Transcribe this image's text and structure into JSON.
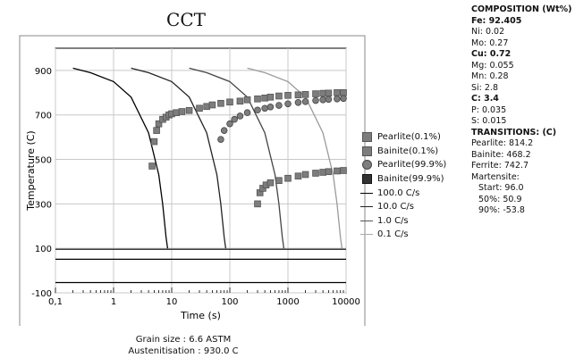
{
  "chart_data": {
    "type": "line",
    "title": "CCT",
    "xlabel": "Time (s)",
    "ylabel": "Temperature (C)",
    "x_scale": "log",
    "xlim": [
      0.1,
      10000
    ],
    "ylim": [
      -100,
      1000
    ],
    "x_ticks": [
      "0,1",
      "1",
      "10",
      "100",
      "1000",
      "10000"
    ],
    "y_ticks": [
      "900",
      "700",
      "500",
      "300",
      "100",
      "-100"
    ],
    "grid": true,
    "legend_position": "right",
    "cooling_curves": [
      {
        "name": "100.0 C/s",
        "points": [
          [
            0.2,
            910
          ],
          [
            0.4,
            890
          ],
          [
            1,
            850
          ],
          [
            2,
            780
          ],
          [
            4,
            620
          ],
          [
            6,
            430
          ],
          [
            7,
            300
          ],
          [
            8,
            150
          ],
          [
            8.5,
            100
          ]
        ]
      },
      {
        "name": "10.0 C/s",
        "points": [
          [
            2,
            910
          ],
          [
            4,
            890
          ],
          [
            10,
            850
          ],
          [
            20,
            780
          ],
          [
            40,
            620
          ],
          [
            60,
            430
          ],
          [
            70,
            300
          ],
          [
            80,
            150
          ],
          [
            85,
            100
          ]
        ]
      },
      {
        "name": "1.0 C/s",
        "points": [
          [
            20,
            910
          ],
          [
            40,
            890
          ],
          [
            100,
            850
          ],
          [
            200,
            780
          ],
          [
            400,
            620
          ],
          [
            600,
            430
          ],
          [
            700,
            300
          ],
          [
            800,
            150
          ],
          [
            850,
            100
          ]
        ]
      },
      {
        "name": "0.1 C/s",
        "points": [
          [
            200,
            910
          ],
          [
            400,
            890
          ],
          [
            1000,
            850
          ],
          [
            2000,
            780
          ],
          [
            4000,
            620
          ],
          [
            6000,
            430
          ],
          [
            7000,
            300
          ],
          [
            8000,
            150
          ],
          [
            8500,
            100
          ]
        ]
      }
    ],
    "horizontal_lines": [
      {
        "label": "Martensite start",
        "y": 96
      },
      {
        "label": "Martensite 50%",
        "y": 50.9
      },
      {
        "label": "Martensite 90%",
        "y": -53.8
      }
    ],
    "series": [
      {
        "name": "Pearlite(0.1%)",
        "marker": "square",
        "points": [
          [
            4.6,
            470
          ],
          [
            5,
            580
          ],
          [
            5.5,
            630
          ],
          [
            6,
            660
          ],
          [
            7,
            680
          ],
          [
            8,
            690
          ],
          [
            9,
            700
          ],
          [
            10,
            705
          ],
          [
            12,
            710
          ],
          [
            15,
            715
          ],
          [
            20,
            720
          ],
          [
            30,
            730
          ],
          [
            40,
            738
          ],
          [
            50,
            745
          ],
          [
            70,
            752
          ],
          [
            100,
            758
          ],
          [
            150,
            762
          ],
          [
            200,
            768
          ],
          [
            300,
            772
          ],
          [
            400,
            776
          ],
          [
            500,
            780
          ],
          [
            700,
            785
          ],
          [
            1000,
            788
          ],
          [
            1500,
            790
          ],
          [
            2000,
            792
          ],
          [
            3000,
            795
          ],
          [
            4000,
            797
          ],
          [
            5000,
            798
          ],
          [
            7000,
            800
          ],
          [
            9000,
            800
          ]
        ]
      },
      {
        "name": "Bainite(0.1%)",
        "marker": "square",
        "points": [
          [
            300,
            300
          ],
          [
            330,
            350
          ],
          [
            370,
            370
          ],
          [
            420,
            385
          ],
          [
            500,
            395
          ],
          [
            700,
            405
          ],
          [
            1000,
            415
          ],
          [
            1500,
            425
          ],
          [
            2000,
            432
          ],
          [
            3000,
            438
          ],
          [
            4000,
            442
          ],
          [
            5000,
            445
          ],
          [
            7000,
            448
          ],
          [
            9000,
            450
          ]
        ]
      },
      {
        "name": "Pearlite(99.9%)",
        "marker": "circle",
        "points": [
          [
            70,
            590
          ],
          [
            80,
            630
          ],
          [
            100,
            660
          ],
          [
            120,
            680
          ],
          [
            150,
            695
          ],
          [
            200,
            710
          ],
          [
            300,
            722
          ],
          [
            400,
            730
          ],
          [
            500,
            736
          ],
          [
            700,
            743
          ],
          [
            1000,
            750
          ],
          [
            1500,
            756
          ],
          [
            2000,
            760
          ],
          [
            3000,
            765
          ],
          [
            4000,
            768
          ],
          [
            5000,
            770
          ],
          [
            7000,
            772
          ],
          [
            9000,
            774
          ]
        ]
      },
      {
        "name": "Bainite(99.9%)",
        "marker": "square-dark",
        "points": []
      }
    ]
  },
  "legend": [
    {
      "label": "Pearlite(0.1%)",
      "symbol": "square"
    },
    {
      "label": "Bainite(0.1%)",
      "symbol": "square"
    },
    {
      "label": "Pearlite(99.9%)",
      "symbol": "circle"
    },
    {
      "label": "Bainite(99.9%)",
      "symbol": "square-dark"
    },
    {
      "label": "100.0 C/s",
      "symbol": "line"
    },
    {
      "label": "10.0 C/s",
      "symbol": "line"
    },
    {
      "label": "1.0 C/s",
      "symbol": "line"
    },
    {
      "label": "0.1 C/s",
      "symbol": "line"
    }
  ],
  "composition": {
    "heading": "COMPOSITION (Wt%)",
    "elements": [
      {
        "text": "Fe: 92.405",
        "bold": true
      },
      {
        "text": "Ni: 0.02",
        "bold": false
      },
      {
        "text": "Mo: 0.27",
        "bold": false
      },
      {
        "text": "Cu: 0.72",
        "bold": true
      },
      {
        "text": "Mg: 0.055",
        "bold": false
      },
      {
        "text": "Mn: 0.28",
        "bold": false
      },
      {
        "text": "Si: 2.8",
        "bold": false
      },
      {
        "text": "C: 3.4",
        "bold": true
      },
      {
        "text": "P: 0.035",
        "bold": false
      },
      {
        "text": "S: 0.015",
        "bold": false
      }
    ]
  },
  "transitions": {
    "heading": "TRANSITIONS: (C)",
    "pearlite": "Pearlite: 814.2",
    "bainite": "Bainite: 468.2",
    "ferrite": "Ferrite: 742.7",
    "martensite": "Martensite:",
    "start": "Start: 96.0",
    "fifty": "50%:  50.9",
    "ninety": "90%:  -53.8"
  },
  "footer": {
    "grain_size": "Grain size : 6.6 ASTM",
    "austenitisation": "Austenitisation : 930.0 C"
  },
  "colors": {
    "curve_100": "#000000",
    "curve_10": "#222222",
    "curve_1": "#444444",
    "curve_01": "#9a9a9a",
    "marker_fill": "#7d7d7d",
    "grid": "#c8c8c8"
  }
}
